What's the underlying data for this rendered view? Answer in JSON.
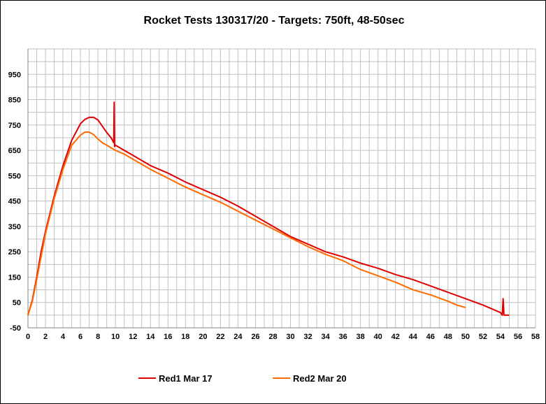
{
  "chart_data": {
    "type": "line",
    "title": "Rocket Tests 130317/20 - Targets: 750ft, 48-50sec",
    "xlabel": "",
    "ylabel": "",
    "xlim": [
      0,
      58
    ],
    "ylim": [
      -50,
      1050
    ],
    "x_ticks": [
      0,
      2,
      4,
      6,
      8,
      10,
      12,
      14,
      16,
      18,
      20,
      22,
      24,
      26,
      28,
      30,
      32,
      34,
      36,
      38,
      40,
      42,
      44,
      46,
      48,
      50,
      52,
      54,
      56,
      58
    ],
    "y_ticks": [
      -50,
      50,
      150,
      250,
      350,
      450,
      550,
      650,
      750,
      850,
      950
    ],
    "x_minor_grid_step": 1,
    "y_minor_grid_step": 50,
    "grid": true,
    "legend_position": "bottom",
    "colors": {
      "plot_background": "#ffffff",
      "grid": "#c0c0c0",
      "axis": "#808080"
    },
    "series": [
      {
        "name": "Red1 Mar 17",
        "color": "#e00000",
        "points": [
          [
            0,
            0
          ],
          [
            0.5,
            60
          ],
          [
            1,
            150
          ],
          [
            1.5,
            250
          ],
          [
            2,
            330
          ],
          [
            3,
            470
          ],
          [
            4,
            590
          ],
          [
            5,
            690
          ],
          [
            6,
            755
          ],
          [
            6.5,
            772
          ],
          [
            7,
            780
          ],
          [
            7.5,
            780
          ],
          [
            8,
            770
          ],
          [
            8.5,
            745
          ],
          [
            9,
            720
          ],
          [
            9.5,
            700
          ],
          [
            9.8,
            680
          ],
          [
            9.85,
            840
          ],
          [
            9.9,
            665
          ],
          [
            10,
            670
          ],
          [
            11,
            650
          ],
          [
            12,
            630
          ],
          [
            14,
            590
          ],
          [
            16,
            560
          ],
          [
            18,
            525
          ],
          [
            20,
            495
          ],
          [
            22,
            465
          ],
          [
            24,
            430
          ],
          [
            26,
            390
          ],
          [
            28,
            350
          ],
          [
            30,
            310
          ],
          [
            32,
            280
          ],
          [
            34,
            250
          ],
          [
            36,
            230
          ],
          [
            38,
            205
          ],
          [
            40,
            185
          ],
          [
            42,
            160
          ],
          [
            44,
            140
          ],
          [
            46,
            115
          ],
          [
            48,
            90
          ],
          [
            50,
            65
          ],
          [
            52,
            40
          ],
          [
            53,
            25
          ],
          [
            54,
            10
          ],
          [
            54.2,
            0
          ],
          [
            54.3,
            65
          ],
          [
            54.4,
            0
          ],
          [
            54.5,
            0
          ],
          [
            55,
            0
          ]
        ]
      },
      {
        "name": "Red2 Mar 20",
        "color": "#ff6a00",
        "points": [
          [
            0,
            0
          ],
          [
            0.5,
            55
          ],
          [
            1,
            140
          ],
          [
            2,
            320
          ],
          [
            3,
            460
          ],
          [
            4,
            575
          ],
          [
            5,
            670
          ],
          [
            6,
            710
          ],
          [
            6.5,
            722
          ],
          [
            7,
            722
          ],
          [
            7.5,
            712
          ],
          [
            8,
            695
          ],
          [
            8.5,
            680
          ],
          [
            9,
            670
          ],
          [
            9.5,
            660
          ],
          [
            10,
            650
          ],
          [
            11,
            635
          ],
          [
            12,
            615
          ],
          [
            14,
            575
          ],
          [
            16,
            540
          ],
          [
            18,
            505
          ],
          [
            20,
            475
          ],
          [
            22,
            445
          ],
          [
            24,
            410
          ],
          [
            26,
            375
          ],
          [
            28,
            340
          ],
          [
            30,
            305
          ],
          [
            32,
            270
          ],
          [
            34,
            240
          ],
          [
            36,
            215
          ],
          [
            38,
            180
          ],
          [
            40,
            155
          ],
          [
            42,
            130
          ],
          [
            44,
            100
          ],
          [
            46,
            80
          ],
          [
            48,
            55
          ],
          [
            49,
            40
          ],
          [
            50,
            30
          ]
        ]
      }
    ]
  }
}
